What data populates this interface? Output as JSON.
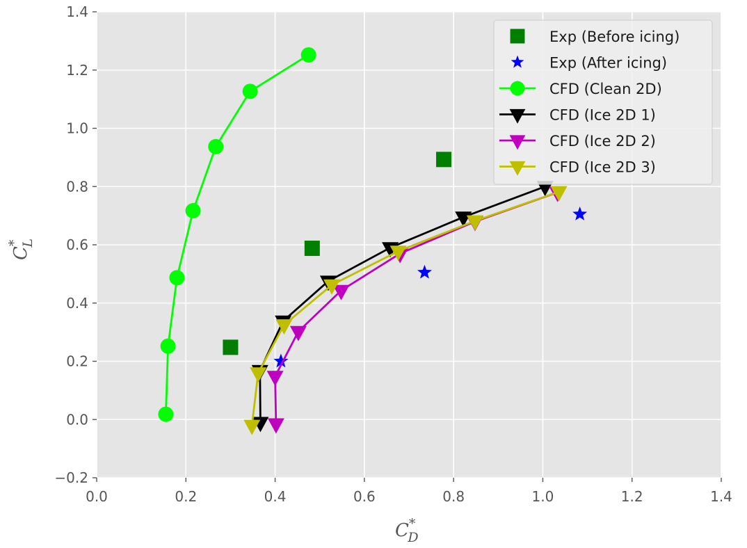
{
  "chart_data": {
    "type": "scatter",
    "title": "",
    "xlabel": {
      "base": "C",
      "sup": "*",
      "sub": "D"
    },
    "ylabel": {
      "base": "C",
      "sup": "*",
      "sub": "L"
    },
    "xlim": [
      0.0,
      1.4
    ],
    "ylim": [
      -0.2,
      1.4
    ],
    "xticks": [
      0.0,
      0.2,
      0.4,
      0.6,
      0.8,
      1.0,
      1.2,
      1.4
    ],
    "xtick_labels": [
      "0.0",
      "0.2",
      "0.4",
      "0.6",
      "0.8",
      "1.0",
      "1.2",
      "1.4"
    ],
    "yticks": [
      -0.2,
      0.0,
      0.2,
      0.4,
      0.6,
      0.8,
      1.0,
      1.2,
      1.4
    ],
    "ytick_labels": [
      "−0.2",
      "0.0",
      "0.2",
      "0.4",
      "0.6",
      "0.8",
      "1.0",
      "1.2",
      "1.4"
    ],
    "grid": true,
    "legend_position": "top-right",
    "series": [
      {
        "name": "Exp (Before icing)",
        "color": "#007f00",
        "marker": "square",
        "line": false,
        "x": [
          0.3,
          0.483,
          0.778
        ],
        "y": [
          0.248,
          0.588,
          0.893
        ]
      },
      {
        "name": "Exp (After icing)",
        "color": "#0000ff",
        "marker": "star",
        "line": false,
        "x": [
          0.413,
          0.735,
          1.083
        ],
        "y": [
          0.2,
          0.505,
          0.705
        ]
      },
      {
        "name": "CFD (Clean 2D)",
        "color": "#00ff00",
        "marker": "circle",
        "line": true,
        "x": [
          0.155,
          0.16,
          0.18,
          0.216,
          0.267,
          0.344,
          0.475
        ],
        "y": [
          0.018,
          0.252,
          0.487,
          0.717,
          0.937,
          1.127,
          1.252
        ]
      },
      {
        "name": "CFD (Ice 2D 1)",
        "color": "#000000",
        "marker": "triangle-down",
        "line": true,
        "x": [
          0.367,
          0.366,
          0.418,
          0.519,
          0.658,
          0.822,
          1.005
        ],
        "y": [
          -0.01,
          0.168,
          0.338,
          0.475,
          0.59,
          0.695,
          0.8
        ]
      },
      {
        "name": "CFD (Ice 2D 2)",
        "color": "#bf00bf",
        "marker": "triangle-down",
        "line": true,
        "x": [
          0.402,
          0.4,
          0.452,
          0.548,
          0.68,
          0.848,
          1.033
        ],
        "y": [
          -0.015,
          0.148,
          0.302,
          0.443,
          0.57,
          0.68,
          0.78
        ]
      },
      {
        "name": "CFD (Ice 2D 3)",
        "color": "#bfbf00",
        "marker": "triangle-down",
        "line": true,
        "x": [
          0.348,
          0.362,
          0.42,
          0.527,
          0.676,
          0.848,
          1.036
        ],
        "y": [
          -0.02,
          0.16,
          0.325,
          0.462,
          0.578,
          0.682,
          0.782
        ]
      }
    ]
  }
}
